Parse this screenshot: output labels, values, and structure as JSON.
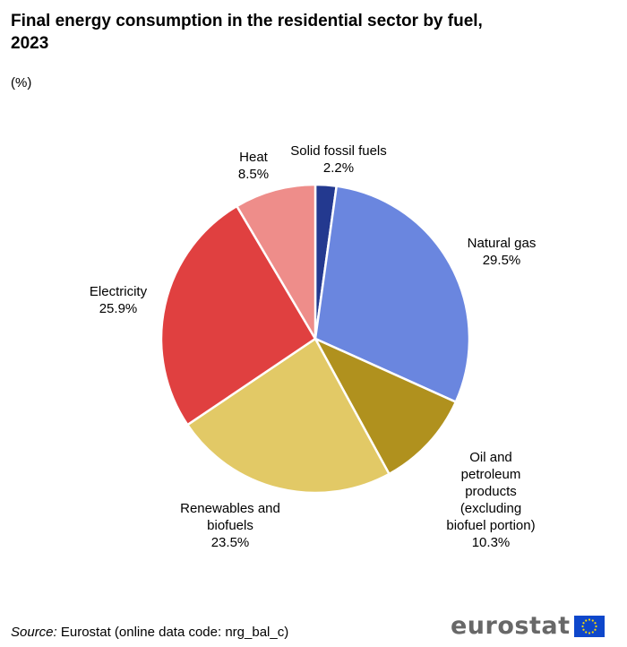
{
  "title": "Final energy consumption in the residential sector by fuel, 2023",
  "unit": "(%)",
  "source": {
    "prefix": "Source:",
    "text": "Eurostat (online data code: nrg_bal_c)"
  },
  "logo": {
    "text": "eurostat",
    "flag_color": "#0e47cb",
    "star_color": "#ffdd00"
  },
  "chart_data": {
    "type": "pie",
    "title": "Final energy consumption in the residential sector by fuel, 2023",
    "unit": "(%)",
    "start_angle_deg": 0,
    "direction": "clockwise",
    "slices": [
      {
        "label": "Solid fossil fuels",
        "value": 2.2,
        "display": "2.2%",
        "color": "#23398f"
      },
      {
        "label": "Natural gas",
        "value": 29.5,
        "display": "29.5%",
        "color": "#6a86df"
      },
      {
        "label": "Oil and petroleum products (excluding biofuel portion)",
        "value": 10.3,
        "display": "10.3%",
        "color": "#b0911e"
      },
      {
        "label": "Renewables and biofuels",
        "value": 23.5,
        "display": "23.5%",
        "color": "#e2c966"
      },
      {
        "label": "Electricity",
        "value": 25.9,
        "display": "25.9%",
        "color": "#e04040"
      },
      {
        "label": "Heat",
        "value": 8.5,
        "display": "8.5%",
        "color": "#ee8d8a"
      }
    ]
  }
}
